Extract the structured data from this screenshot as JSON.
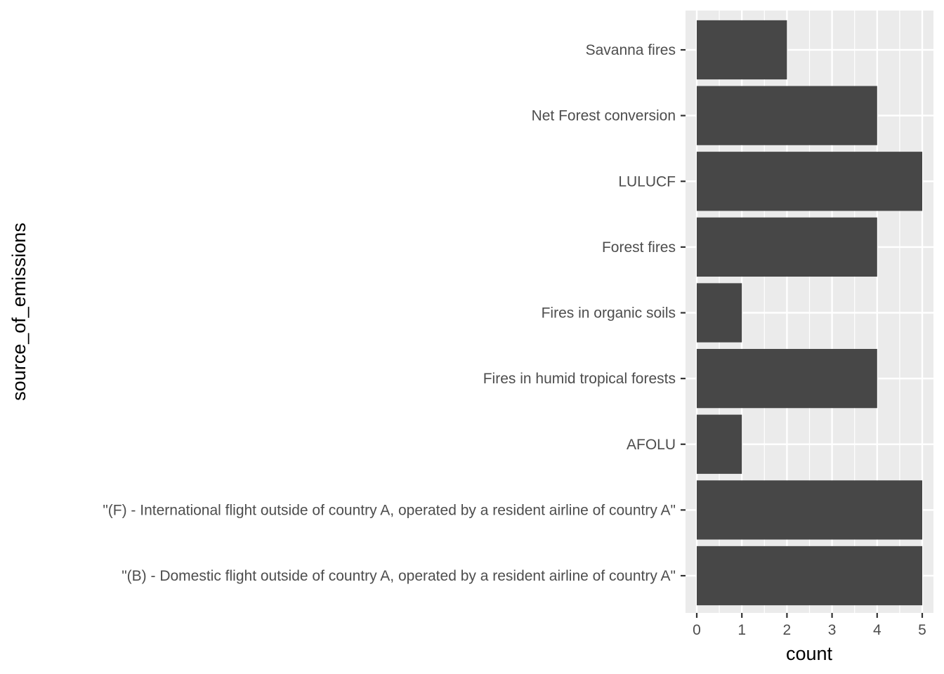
{
  "chart_data": {
    "type": "bar",
    "orientation": "horizontal",
    "categories": [
      "\"(B) - Domestic flight outside of country A, operated by a resident airline of country A\"",
      "\"(F) - International flight outside of country A, operated by a resident airline of country A\"",
      "AFOLU",
      "Fires in humid tropical forests",
      "Fires in organic soils",
      "Forest fires",
      "LULUCF",
      "Net Forest conversion",
      "Savanna fires"
    ],
    "values": [
      5,
      5,
      1,
      4,
      1,
      4,
      5,
      4,
      2
    ],
    "xlabel": "count",
    "ylabel": "source_of_emissions",
    "x_ticks": [
      0,
      1,
      2,
      3,
      4,
      5
    ],
    "xlim": [
      0,
      5
    ],
    "grid": true,
    "colors": {
      "bar": "#474747",
      "panel": "#ebebeb",
      "grid": "#ffffff"
    }
  }
}
